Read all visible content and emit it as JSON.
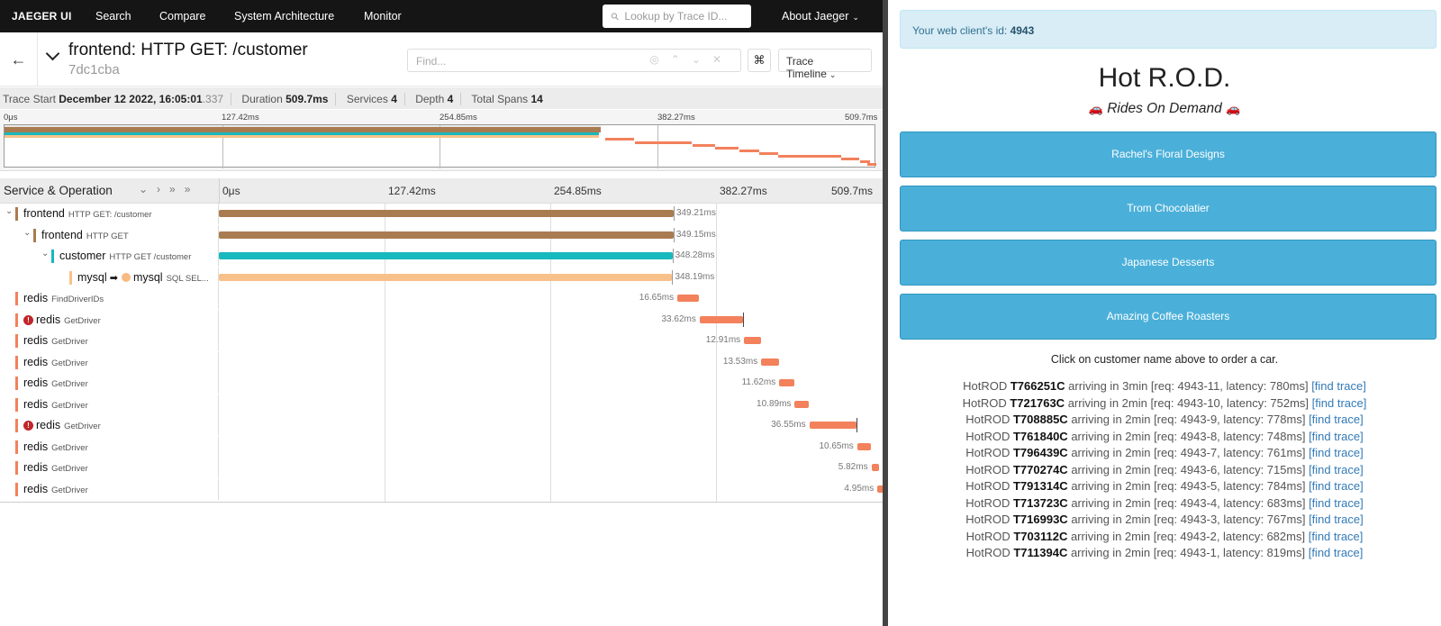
{
  "nav": {
    "brand": "JAEGER UI",
    "items": [
      "Search",
      "Compare",
      "System Architecture",
      "Monitor"
    ],
    "lookup_placeholder": "Lookup by Trace ID...",
    "about": "About Jaeger"
  },
  "trace": {
    "title": "frontend: HTTP GET: /customer",
    "id": "7dc1cba",
    "find_placeholder": "Find...",
    "view_label": "Trace Timeline",
    "stats": {
      "start_label": "Trace Start",
      "start_value": "December 12 2022, 16:05:01",
      "start_ms": ".337",
      "duration_label": "Duration",
      "duration_value": "509.7ms",
      "services_label": "Services",
      "services_value": "4",
      "depth_label": "Depth",
      "depth_value": "4",
      "spans_label": "Total Spans",
      "spans_value": "14"
    },
    "ticks": [
      "0μs",
      "127.42ms",
      "254.85ms",
      "382.27ms",
      "509.7ms"
    ],
    "column_title": "Service & Operation",
    "total_ms": 509.7
  },
  "colors": {
    "frontend": "#a97b50",
    "customer": "#17b8be",
    "mysql": "#f8c189",
    "redis": "#f2815c"
  },
  "spans": [
    {
      "service": "frontend",
      "op": "HTTP GET: /customer",
      "depth": 0,
      "start": 0,
      "duration": 349.21,
      "label": "349.21ms",
      "chevron": true,
      "error": false
    },
    {
      "service": "frontend",
      "op": "HTTP GET",
      "depth": 1,
      "start": 0,
      "duration": 349.15,
      "label": "349.15ms",
      "chevron": true,
      "error": false
    },
    {
      "service": "customer",
      "op": "HTTP GET /customer",
      "depth": 2,
      "start": 0,
      "duration": 348.28,
      "label": "348.28ms",
      "chevron": true,
      "error": false
    },
    {
      "service": "mysql",
      "op": "SQL SEL...",
      "depth": 3,
      "start": 0,
      "duration": 348.19,
      "label": "348.19ms",
      "chevron": false,
      "error": false,
      "peer": "mysql"
    },
    {
      "service": "redis",
      "op": "FindDriverIDs",
      "depth": 0,
      "start": 352.1,
      "duration": 16.65,
      "label": "16.65ms",
      "chevron": false,
      "error": false
    },
    {
      "service": "redis",
      "op": "GetDriver",
      "depth": 0,
      "start": 369.2,
      "duration": 33.62,
      "label": "33.62ms",
      "chevron": false,
      "error": true
    },
    {
      "service": "redis",
      "op": "GetDriver",
      "depth": 0,
      "start": 403.3,
      "duration": 12.91,
      "label": "12.91ms",
      "chevron": false,
      "error": false
    },
    {
      "service": "redis",
      "op": "GetDriver",
      "depth": 0,
      "start": 416.5,
      "duration": 13.53,
      "label": "13.53ms",
      "chevron": false,
      "error": false
    },
    {
      "service": "redis",
      "op": "GetDriver",
      "depth": 0,
      "start": 430.3,
      "duration": 11.62,
      "label": "11.62ms",
      "chevron": false,
      "error": false
    },
    {
      "service": "redis",
      "op": "GetDriver",
      "depth": 0,
      "start": 442.2,
      "duration": 10.89,
      "label": "10.89ms",
      "chevron": false,
      "error": false
    },
    {
      "service": "redis",
      "op": "GetDriver",
      "depth": 0,
      "start": 453.4,
      "duration": 36.55,
      "label": "36.55ms",
      "chevron": false,
      "error": true
    },
    {
      "service": "redis",
      "op": "GetDriver",
      "depth": 0,
      "start": 490.2,
      "duration": 10.65,
      "label": "10.65ms",
      "chevron": false,
      "error": false
    },
    {
      "service": "redis",
      "op": "GetDriver",
      "depth": 0,
      "start": 501.1,
      "duration": 5.82,
      "label": "5.82ms",
      "chevron": false,
      "error": false
    },
    {
      "service": "redis",
      "op": "GetDriver",
      "depth": 0,
      "start": 505.7,
      "duration": 4.95,
      "label": "4.95ms",
      "chevron": false,
      "error": false
    }
  ],
  "hotrod": {
    "client_prefix": "Your web client's id: ",
    "client_id": "4943",
    "title": "Hot R.O.D.",
    "subtitle": "Rides On Demand",
    "car_glyph": "🚗",
    "customers": [
      "Rachel's Floral Designs",
      "Trom Chocolatier",
      "Japanese Desserts",
      "Amazing Coffee Roasters"
    ],
    "hint": "Click on customer name above to order a car.",
    "ride_prefix": "HotROD",
    "link_text": "[find trace]",
    "rides": [
      {
        "car": "T766251C",
        "text": " arriving in 3min [req: 4943-11, latency: 780ms] "
      },
      {
        "car": "T721763C",
        "text": " arriving in 2min [req: 4943-10, latency: 752ms] "
      },
      {
        "car": "T708885C",
        "text": " arriving in 2min [req: 4943-9, latency: 778ms] "
      },
      {
        "car": "T761840C",
        "text": " arriving in 2min [req: 4943-8, latency: 748ms] "
      },
      {
        "car": "T796439C",
        "text": " arriving in 2min [req: 4943-7, latency: 761ms] "
      },
      {
        "car": "T770274C",
        "text": " arriving in 2min [req: 4943-6, latency: 715ms] "
      },
      {
        "car": "T791314C",
        "text": " arriving in 2min [req: 4943-5, latency: 784ms] "
      },
      {
        "car": "T713723C",
        "text": " arriving in 2min [req: 4943-4, latency: 683ms] "
      },
      {
        "car": "T716993C",
        "text": " arriving in 2min [req: 4943-3, latency: 767ms] "
      },
      {
        "car": "T703112C",
        "text": " arriving in 2min [req: 4943-2, latency: 682ms] "
      },
      {
        "car": "T711394C",
        "text": " arriving in 2min [req: 4943-1, latency: 819ms] "
      }
    ]
  }
}
